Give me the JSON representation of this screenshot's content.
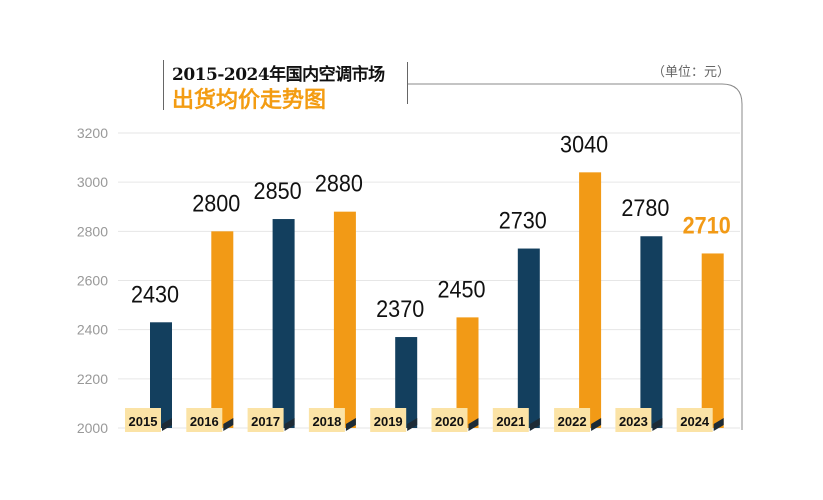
{
  "title_line1": "2015-2024年国内空调市场",
  "title_line2": "出货均价走势图",
  "unit": "（单位：元）",
  "colors": {
    "navy": "#133f5e",
    "orange": "#f29a16",
    "label_box": "#fbe3a6",
    "highlight_label": "#f29a16"
  },
  "chart_data": {
    "type": "bar",
    "title": "2015-2024年国内空调市场出货均价走势图",
    "xlabel": "",
    "ylabel": "单位：元",
    "ylim": [
      2000,
      3200
    ],
    "yticks": [
      "2000",
      "2200",
      "2400",
      "2600",
      "2800",
      "3000",
      "3200"
    ],
    "categories": [
      "2015",
      "2016",
      "2017",
      "2018",
      "2019",
      "2020",
      "2021",
      "2022",
      "2023",
      "2024"
    ],
    "values": [
      2430,
      2800,
      2850,
      2880,
      2370,
      2450,
      2730,
      3040,
      2780,
      2710
    ],
    "bar_colors": [
      "navy",
      "orange",
      "navy",
      "orange",
      "navy",
      "orange",
      "navy",
      "orange",
      "navy",
      "orange"
    ],
    "grid": true,
    "legend": "none"
  }
}
